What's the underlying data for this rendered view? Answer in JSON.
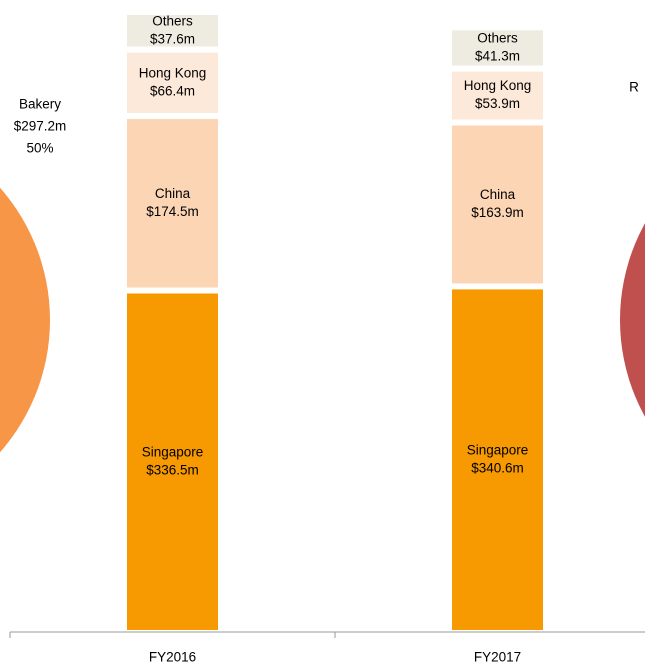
{
  "chart_data": [
    {
      "type": "bar",
      "categories": [
        "FY2016",
        "FY2017"
      ],
      "series": [
        {
          "name": "Singapore",
          "color": "#f79900",
          "values": [
            336.5,
            340.6
          ],
          "value_labels": [
            "$336.5m",
            "$340.6m"
          ]
        },
        {
          "name": "China",
          "color": "#fcd5b5",
          "values": [
            174.5,
            163.9
          ],
          "value_labels": [
            "$174.5m",
            "$163.9m"
          ]
        },
        {
          "name": "Hong Kong",
          "color": "#fde9d9",
          "values": [
            66.4,
            53.9
          ],
          "value_labels": [
            "$66.4m",
            "$53.9m"
          ]
        },
        {
          "name": "Others",
          "color": "#eeece1",
          "values": [
            37.6,
            41.3
          ],
          "value_labels": [
            "$37.6m",
            "$41.3m"
          ]
        }
      ],
      "ylim": [
        0,
        620
      ]
    },
    {
      "type": "pie",
      "labels": [
        "Bakery"
      ],
      "values": [
        297.2
      ],
      "value_labels": [
        "$297.2m"
      ],
      "percents": [
        50
      ],
      "percent_labels": [
        "50%"
      ],
      "color": "#f79646",
      "annotation": "R"
    }
  ]
}
